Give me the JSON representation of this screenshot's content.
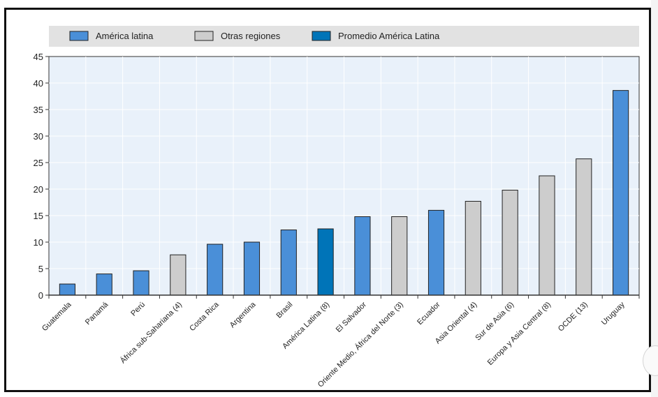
{
  "chart_data": {
    "type": "bar",
    "categories": [
      "Guatemala",
      "Panamá",
      "Perú",
      "África sub-Sahariana (4)",
      "Costa Rica",
      "Argentina",
      "Brasil",
      "América Latina (8)",
      "El Salvador",
      "Oriente Medio, África del Norte (3)",
      "Ecuador",
      "Asia Oriental (4)",
      "Sur de Asia (6)",
      "Europa y Asia Central (8)",
      "OCDE (13)",
      "Uruguay"
    ],
    "values": [
      2.1,
      4.0,
      4.6,
      7.6,
      9.6,
      10.0,
      12.3,
      12.5,
      14.8,
      14.8,
      16.0,
      17.7,
      19.8,
      22.5,
      25.7,
      38.6
    ],
    "groups": [
      "latam",
      "latam",
      "latam",
      "other",
      "latam",
      "latam",
      "latam",
      "avg",
      "latam",
      "other",
      "latam",
      "other",
      "other",
      "other",
      "other",
      "latam"
    ],
    "legend": [
      {
        "key": "latam",
        "name": "América latina",
        "color": "#4a8fd8"
      },
      {
        "key": "other",
        "name": "Otras regiones",
        "color": "#cdcdcd"
      },
      {
        "key": "avg",
        "name": "Promedio América Latina",
        "color": "#0074b8"
      }
    ],
    "ylim": [
      0,
      45
    ],
    "yticks": [
      0,
      5,
      10,
      15,
      20,
      25,
      30,
      35,
      40,
      45
    ],
    "grid": true,
    "legend_position": "top",
    "title": "",
    "xlabel": "",
    "ylabel": ""
  },
  "colors": {
    "plot_background": "#e9f1fa",
    "legend_background": "#e2e2e2",
    "gridline": "#ffffff",
    "axis": "#333333",
    "bar_stroke": "#222222"
  }
}
